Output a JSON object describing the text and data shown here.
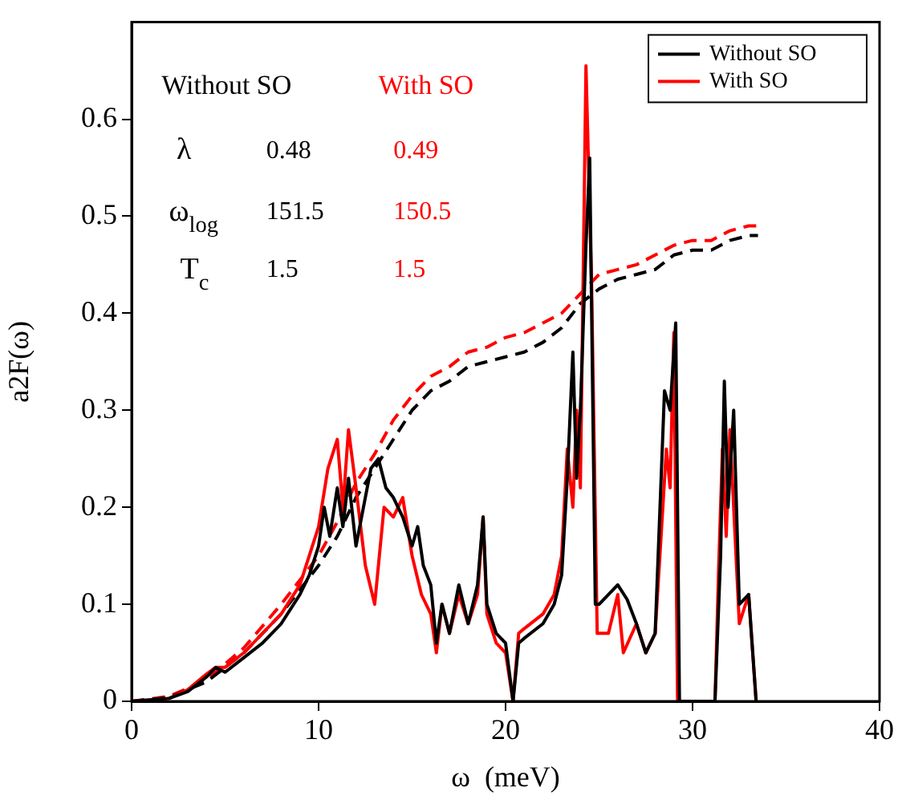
{
  "chart_data": {
    "type": "line",
    "xlabel": "ω  (meV)",
    "ylabel": "a2F(ω)",
    "xlim": [
      0,
      40
    ],
    "xticks": [
      0,
      10,
      20,
      30,
      40
    ],
    "ylim": [
      0,
      0.7
    ],
    "yticks": [
      0,
      0.1,
      0.2,
      0.3,
      0.4,
      0.5,
      0.6
    ],
    "grid": false,
    "legend": "top right",
    "marker": "none",
    "series": [
      {
        "name": "Without SO",
        "color": "#000000",
        "line_style": "solid",
        "x": [
          0,
          2,
          3,
          4,
          4.5,
          5,
          6,
          7,
          8,
          9,
          9.5,
          10,
          10.3,
          10.6,
          11,
          11.3,
          11.6,
          12,
          12.4,
          12.8,
          13.2,
          13.6,
          14,
          14.5,
          15,
          15.3,
          15.6,
          16,
          16.3,
          16.6,
          17,
          17.5,
          18,
          18.5,
          18.8,
          19,
          19.5,
          20,
          20.4,
          20.7,
          21,
          22,
          22.6,
          23,
          23.3,
          23.6,
          23.8,
          24,
          24.3,
          24.5,
          24.8,
          25,
          26,
          26.5,
          27,
          27.5,
          28,
          28.5,
          28.8,
          29.1,
          29.3,
          31.2,
          31.5,
          31.7,
          31.9,
          32.2,
          32.5,
          33,
          33.4
        ],
        "values": [
          0,
          0.003,
          0.01,
          0.025,
          0.035,
          0.03,
          0.045,
          0.06,
          0.08,
          0.11,
          0.13,
          0.16,
          0.2,
          0.17,
          0.22,
          0.18,
          0.23,
          0.16,
          0.2,
          0.24,
          0.25,
          0.22,
          0.21,
          0.19,
          0.16,
          0.18,
          0.14,
          0.12,
          0.06,
          0.1,
          0.07,
          0.12,
          0.08,
          0.12,
          0.19,
          0.1,
          0.07,
          0.06,
          0,
          0.06,
          0.065,
          0.08,
          0.1,
          0.13,
          0.23,
          0.36,
          0.23,
          0.3,
          0.47,
          0.56,
          0.1,
          0.1,
          0.12,
          0.105,
          0.08,
          0.05,
          0.07,
          0.32,
          0.3,
          0.39,
          0,
          0,
          0.15,
          0.33,
          0.2,
          0.3,
          0.1,
          0.11,
          0
        ]
      },
      {
        "name": "With SO",
        "color": "#ff0000",
        "line_style": "solid",
        "x": [
          0,
          2,
          3,
          4,
          4.5,
          5,
          6,
          7,
          8,
          9,
          9.5,
          10,
          10.5,
          11,
          11.3,
          11.6,
          12,
          12.5,
          13,
          13.5,
          14,
          14.5,
          15,
          15.5,
          16,
          16.3,
          16.6,
          17,
          17.5,
          18,
          18.5,
          18.8,
          19,
          19.5,
          20,
          20.4,
          20.7,
          21,
          22,
          22.6,
          23,
          23.3,
          23.6,
          23.8,
          24,
          24.3,
          24.6,
          24.9,
          25.5,
          26,
          26.3,
          27,
          27.5,
          28,
          28.6,
          28.8,
          29,
          29.2,
          31.2,
          31.4,
          31.6,
          31.8,
          32,
          32.5,
          33,
          33.4
        ],
        "values": [
          0,
          0.003,
          0.012,
          0.028,
          0.035,
          0.035,
          0.05,
          0.07,
          0.09,
          0.12,
          0.15,
          0.18,
          0.24,
          0.27,
          0.2,
          0.28,
          0.22,
          0.14,
          0.1,
          0.2,
          0.19,
          0.21,
          0.15,
          0.11,
          0.09,
          0.05,
          0.1,
          0.07,
          0.11,
          0.08,
          0.11,
          0.19,
          0.09,
          0.06,
          0.05,
          0,
          0.07,
          0.075,
          0.09,
          0.11,
          0.15,
          0.26,
          0.2,
          0.3,
          0.22,
          0.655,
          0.43,
          0.07,
          0.07,
          0.11,
          0.05,
          0.08,
          0.05,
          0.07,
          0.26,
          0.22,
          0.38,
          0,
          0,
          0.14,
          0.26,
          0.17,
          0.28,
          0.08,
          0.11,
          0
        ]
      },
      {
        "color": "#000000",
        "line_style": "dashed",
        "x": [
          0,
          2,
          4,
          6,
          8,
          10,
          11,
          12,
          13,
          14,
          15,
          16,
          17,
          18,
          19,
          20,
          21,
          22,
          23,
          24,
          25,
          26,
          27,
          28,
          29,
          30,
          31,
          32,
          33,
          33.5
        ],
        "values": [
          0,
          0.004,
          0.02,
          0.05,
          0.09,
          0.14,
          0.17,
          0.21,
          0.24,
          0.27,
          0.3,
          0.32,
          0.33,
          0.345,
          0.35,
          0.355,
          0.36,
          0.37,
          0.385,
          0.41,
          0.425,
          0.435,
          0.44,
          0.445,
          0.46,
          0.465,
          0.465,
          0.475,
          0.48,
          0.48
        ]
      },
      {
        "color": "#ff0000",
        "line_style": "dashed",
        "x": [
          0,
          2,
          4,
          6,
          8,
          10,
          11,
          12,
          13,
          14,
          15,
          16,
          17,
          18,
          19,
          20,
          21,
          22,
          23,
          24,
          25,
          26,
          27,
          28,
          29,
          30,
          31,
          32,
          33,
          33.5
        ],
        "values": [
          0,
          0.005,
          0.022,
          0.055,
          0.1,
          0.15,
          0.185,
          0.225,
          0.255,
          0.29,
          0.315,
          0.335,
          0.345,
          0.36,
          0.365,
          0.375,
          0.38,
          0.39,
          0.4,
          0.42,
          0.44,
          0.445,
          0.45,
          0.46,
          0.47,
          0.475,
          0.475,
          0.485,
          0.49,
          0.49
        ]
      }
    ],
    "annotations": [
      "Without SO",
      "With SO",
      "λ",
      "0.48",
      "0.49",
      "ω$_{log}$",
      "151.5",
      "150.5",
      "T$_{c}$",
      "1.5",
      "1.5"
    ]
  }
}
